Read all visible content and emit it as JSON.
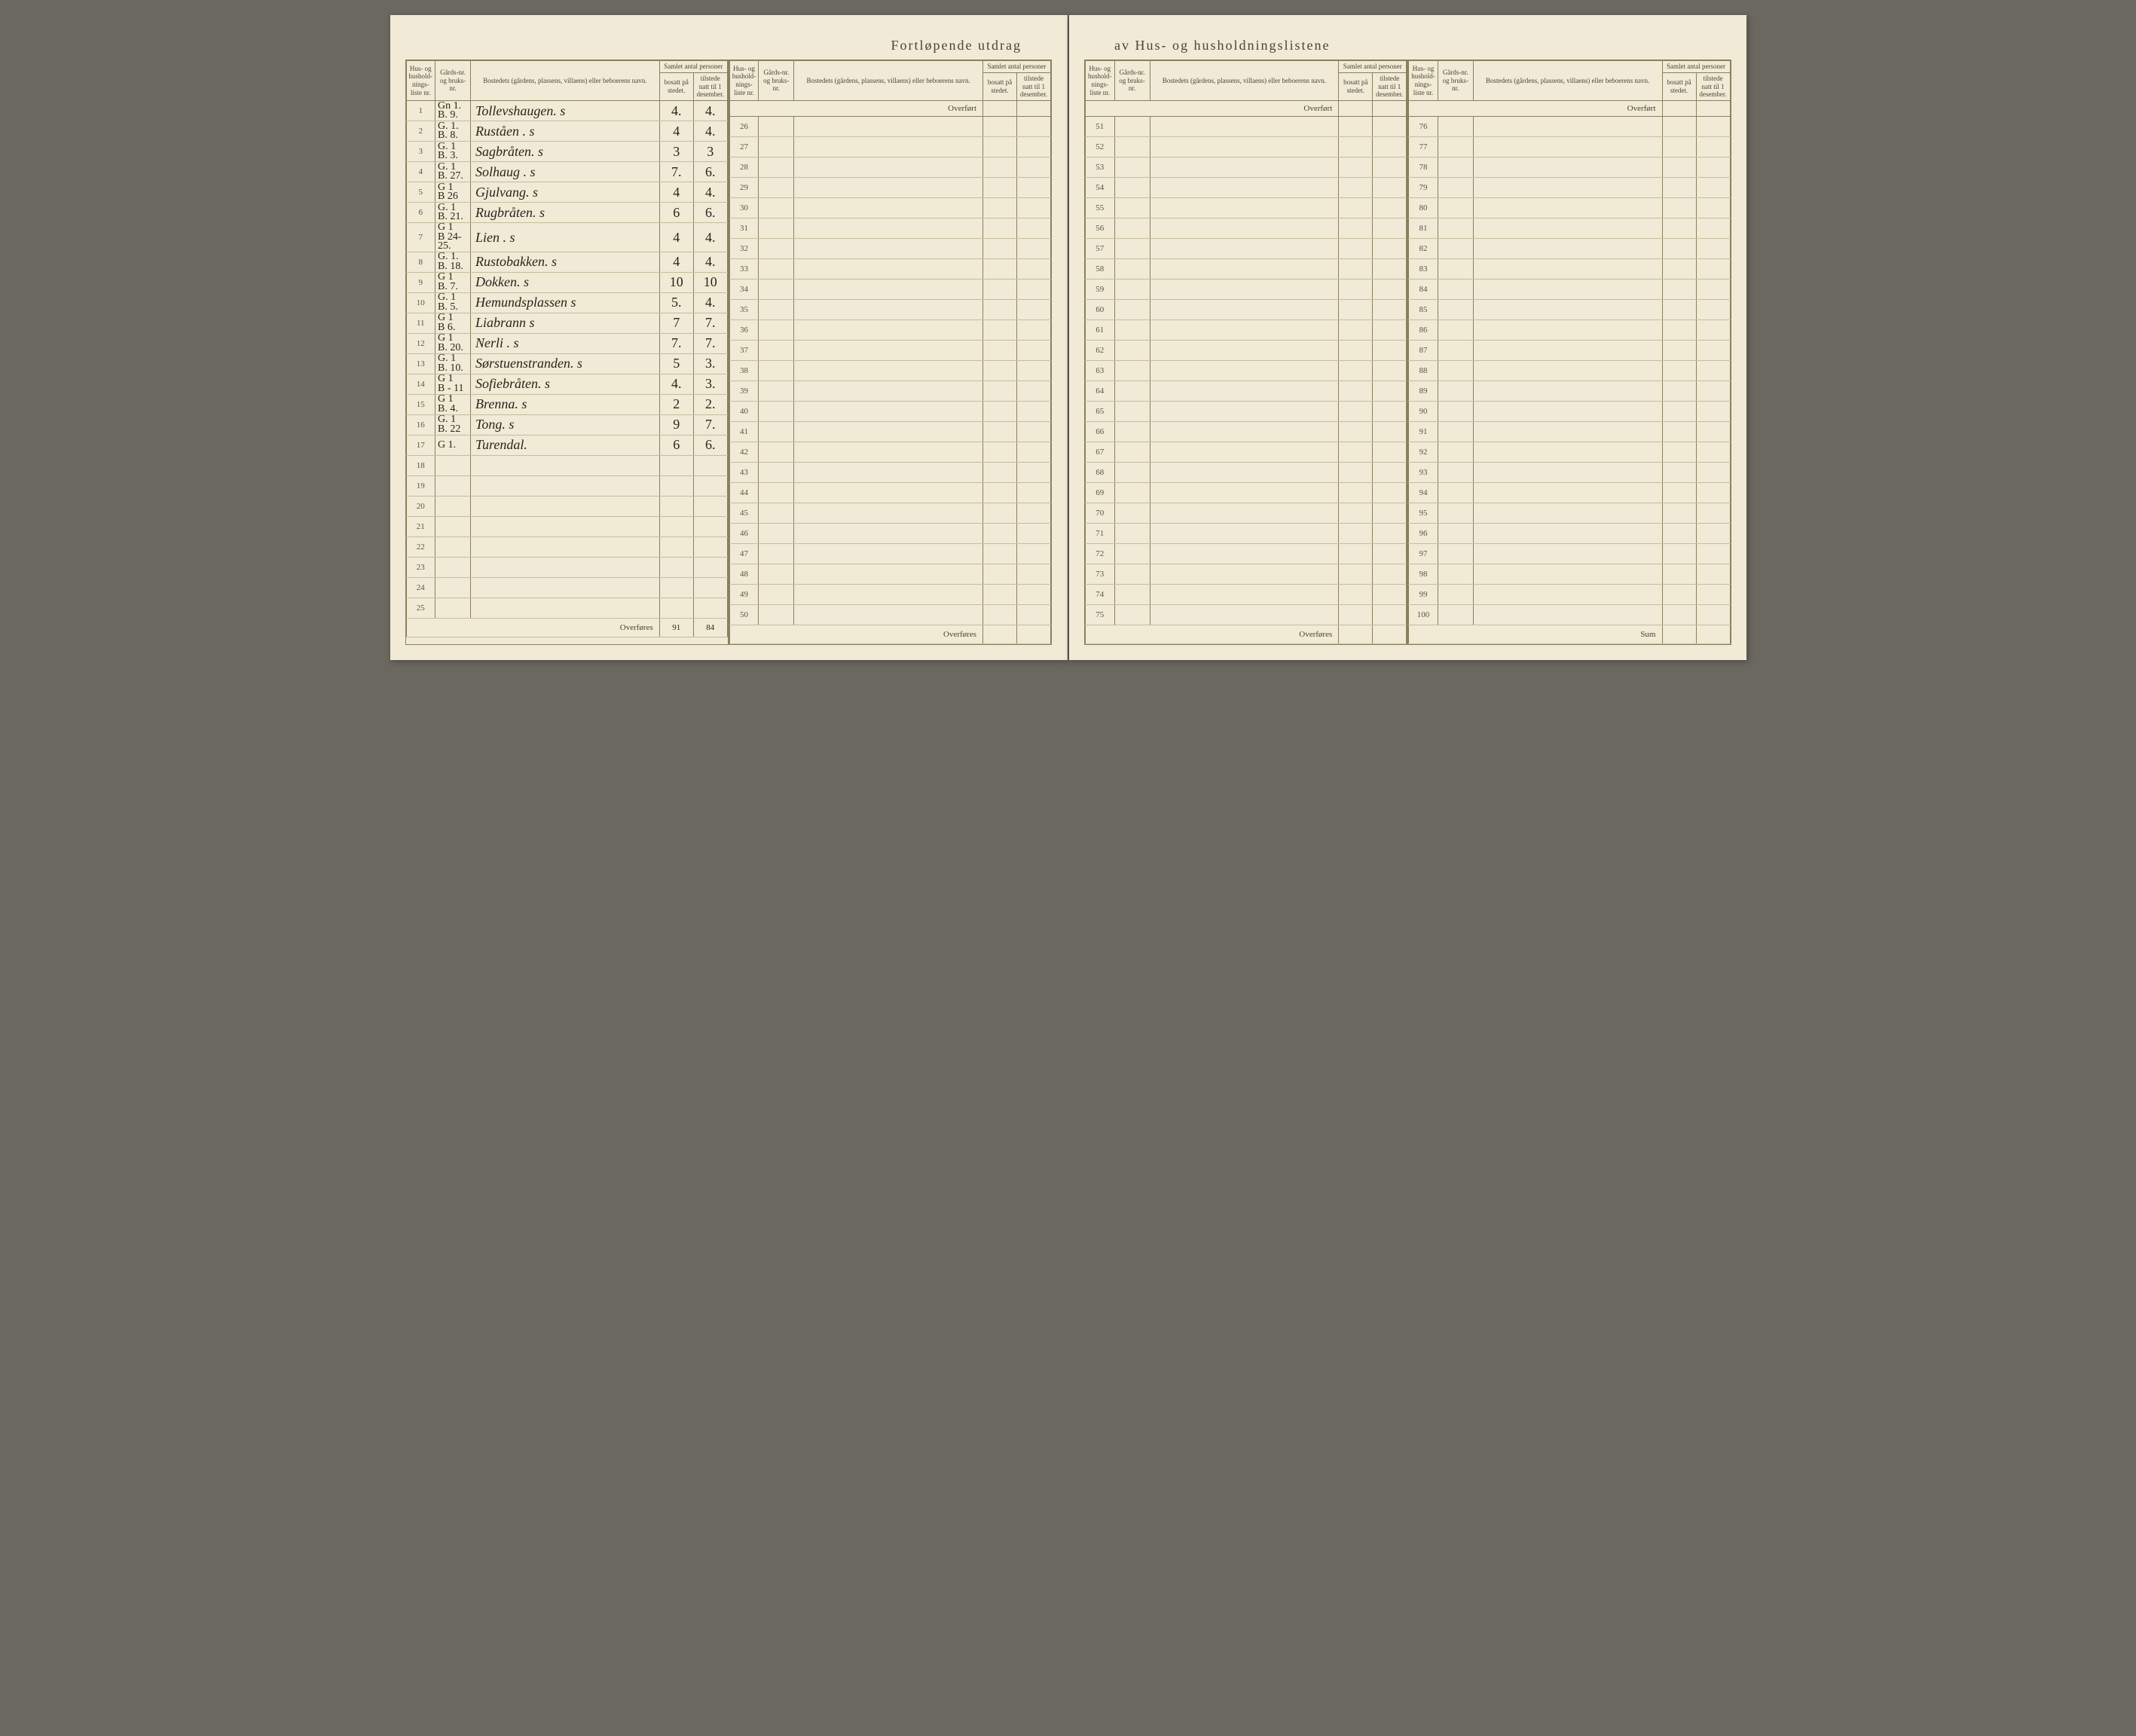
{
  "title_left": "Fortløpende utdrag",
  "title_right": "av Hus- og husholdningslistene",
  "headers": {
    "hus": "Hus- og hushold-nings-liste nr.",
    "gard": "Gårds-nr. og bruks-nr.",
    "bosted": "Bostedets (gårdens, plassens, villaens) eller beboerens navn.",
    "samlet": "Samlet antal personer",
    "bosatt": "bosatt på stedet.",
    "tilstede": "tilstede natt til 1 desember."
  },
  "overfort": "Overført",
  "overfores": "Overføres",
  "sum": "Sum",
  "rows": [
    {
      "n": 1,
      "g": "Gn 1.\nB. 9.",
      "name": "Tollevshaugen. s",
      "b": "4.",
      "t": "4."
    },
    {
      "n": 2,
      "g": "G. 1.\nB. 8.",
      "name": "Ruståen . s",
      "b": "4",
      "t": "4."
    },
    {
      "n": 3,
      "g": "G. 1\nB. 3.",
      "name": "Sagbråten. s",
      "b": "3",
      "t": "3"
    },
    {
      "n": 4,
      "g": "G. 1\nB. 27.",
      "name": "Solhaug . s",
      "b": "7.",
      "t": "6."
    },
    {
      "n": 5,
      "g": "G 1\nB 26",
      "name": "Gjulvang. s",
      "b": "4",
      "t": "4."
    },
    {
      "n": 6,
      "g": "G. 1\nB. 21.",
      "name": "Rugbråten. s",
      "b": "6",
      "t": "6."
    },
    {
      "n": 7,
      "g": "G 1\nB 24-25.",
      "name": "Lien . s",
      "b": "4",
      "t": "4."
    },
    {
      "n": 8,
      "g": "G. 1.\nB. 18.",
      "name": "Rustobakken. s",
      "b": "4",
      "t": "4."
    },
    {
      "n": 9,
      "g": "G 1\nB. 7.",
      "name": "Dokken. s",
      "b": "10",
      "t": "10"
    },
    {
      "n": 10,
      "g": "G. 1\nB. 5.",
      "name": "Hemundsplassen s",
      "b": "5.",
      "t": "4."
    },
    {
      "n": 11,
      "g": "G 1\nB 6.",
      "name": "Liabrann s",
      "b": "7",
      "t": "7."
    },
    {
      "n": 12,
      "g": "G 1\nB. 20.",
      "name": "Nerli . s",
      "b": "7.",
      "t": "7."
    },
    {
      "n": 13,
      "g": "G. 1\nB. 10.",
      "name": "Sørstuenstranden. s",
      "b": "5",
      "t": "3."
    },
    {
      "n": 14,
      "g": "G 1\nB - 11",
      "name": "Sofiebråten. s",
      "b": "4.",
      "t": "3."
    },
    {
      "n": 15,
      "g": "G 1\nB. 4.",
      "name": "Brenna. s",
      "b": "2",
      "t": "2."
    },
    {
      "n": 16,
      "g": "G. 1\nB. 22",
      "name": "Tong. s",
      "b": "9",
      "t": "7."
    },
    {
      "n": 17,
      "g": "G 1.",
      "name": "Turendal.",
      "b": "6",
      "t": "6."
    }
  ],
  "totals": {
    "b": "91",
    "t": "84"
  },
  "colors": {
    "paper": "#f0ead6",
    "ink": "#2a2418",
    "rule": "#8a8060",
    "faint_rule": "#c5bd9d",
    "bg": "#6b6860"
  }
}
